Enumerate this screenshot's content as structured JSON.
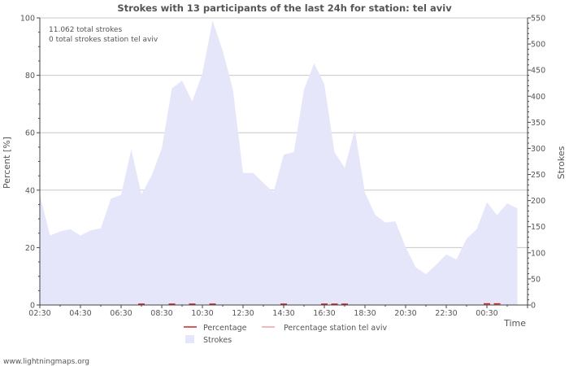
{
  "chart_data": {
    "type": "area",
    "title": "Strokes with 13 participants of the last 24h for station: tel aviv",
    "xlabel": "Time",
    "ylabel_left": "Percent   [%]",
    "ylabel_right": "Strokes",
    "ylim_left": [
      0,
      100
    ],
    "ylim_right": [
      0,
      550
    ],
    "yticks_left": [
      0,
      20,
      40,
      60,
      80,
      100
    ],
    "yticks_right": [
      0,
      50,
      100,
      150,
      200,
      250,
      300,
      350,
      400,
      450,
      500,
      550
    ],
    "x_tick_labels": [
      "02:30",
      "04:30",
      "06:30",
      "08:30",
      "10:30",
      "12:30",
      "14:30",
      "16:30",
      "18:30",
      "20:30",
      "22:30",
      "00:30"
    ],
    "info_lines": [
      "11.062 total strokes",
      "0 total strokes station tel aviv"
    ],
    "legend": [
      {
        "label": "Percentage",
        "color": "#cc2222"
      },
      {
        "label": "Percentage station tel aviv",
        "color": "#f0a0a0"
      },
      {
        "label": "Strokes",
        "color": "#e6e6fa"
      }
    ],
    "series": [
      {
        "name": "Strokes",
        "axis": "right",
        "color": "#e6e6fa",
        "x_hours": [
          0,
          0.5,
          1,
          1.5,
          2,
          2.5,
          3,
          3.5,
          4,
          4.5,
          5,
          5.5,
          6,
          6.5,
          7,
          7.5,
          8,
          8.5,
          9,
          9.5,
          10,
          10.5,
          11,
          11.5,
          12,
          12.5,
          13,
          13.5,
          14,
          14.5,
          15,
          15.5,
          16,
          16.5,
          17,
          17.5,
          18,
          18.5,
          19,
          19.5,
          20,
          20.5,
          21,
          21.5,
          22,
          22.5,
          23,
          23.5
        ],
        "values": [
          212,
          133,
          141,
          145,
          133,
          143,
          147,
          204,
          211,
          298,
          212,
          248,
          300,
          415,
          430,
          390,
          444,
          545,
          487,
          413,
          253,
          253,
          234,
          216,
          288,
          293,
          413,
          463,
          423,
          293,
          263,
          336,
          215,
          173,
          158,
          160,
          111,
          72,
          59,
          77,
          97,
          87,
          127,
          145,
          197,
          172,
          195,
          185
        ]
      },
      {
        "name": "Percentage",
        "axis": "left",
        "color": "#cc2222",
        "x_hours": [
          5,
          6.5,
          7.5,
          8.5,
          12,
          14,
          14.5,
          15,
          22,
          22.5
        ],
        "values": [
          0.3,
          0.3,
          0.3,
          0.3,
          0.3,
          0.3,
          0.3,
          0.3,
          0.4,
          0.4
        ]
      },
      {
        "name": "Percentage station tel aviv",
        "axis": "left",
        "color": "#f0a0a0",
        "x_hours": [],
        "values": []
      }
    ]
  },
  "watermark": "www.lightningmaps.org"
}
